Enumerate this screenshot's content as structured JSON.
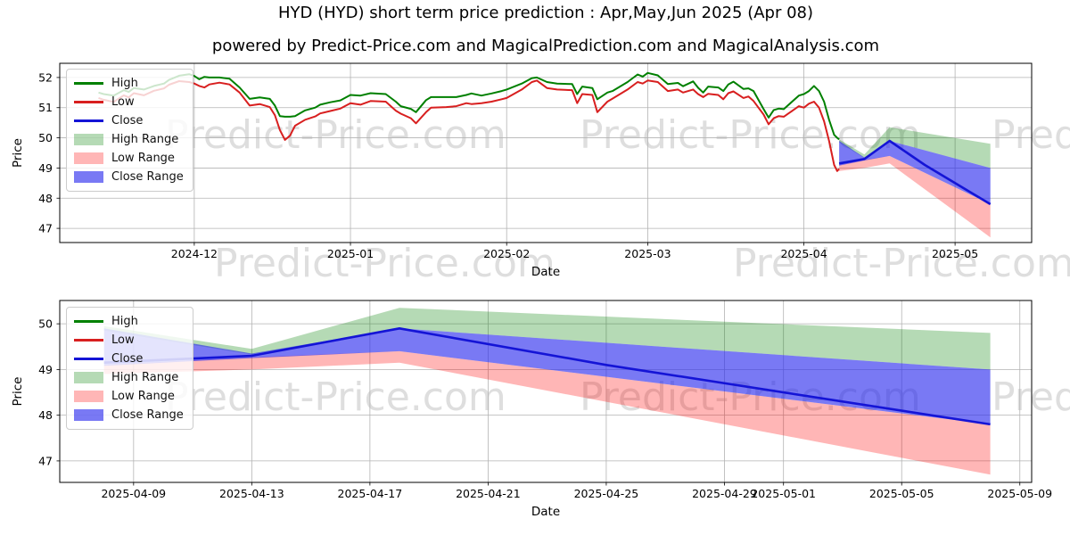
{
  "title": "HYD (HYD) short term price prediction : Apr,May,Jun 2025 (Apr 08)",
  "subtitle": "powered by Predict-Price.com and MagicalPrediction.com and MagicalAnalysis.com",
  "watermark": {
    "text": "Predict-Price.com",
    "color": "#dedede"
  },
  "colors": {
    "high_line": "#008000",
    "low_line": "#d81f1f",
    "close_line": "#1414d6",
    "high_range_fill": "rgba(0,128,0,0.29)",
    "low_range_fill": "rgba(255,0,0,0.285)",
    "close_range_fill": "rgba(38,38,238,0.62)",
    "grid": "#b3b3b3",
    "frame": "#000000",
    "text": "#000000"
  },
  "legend": {
    "items": [
      {
        "label": "High",
        "type": "line",
        "color_key": "high_line"
      },
      {
        "label": "Low",
        "type": "line",
        "color_key": "low_line"
      },
      {
        "label": "Close",
        "type": "line",
        "color_key": "close_line"
      },
      {
        "label": "High Range",
        "type": "patch",
        "color_key": "high_range_fill"
      },
      {
        "label": "Low Range",
        "type": "patch",
        "color_key": "low_range_fill"
      },
      {
        "label": "Close Range",
        "type": "patch",
        "color_key": "close_range_fill"
      }
    ]
  },
  "chart_data": [
    {
      "type": "line",
      "name": "full-history-with-prediction",
      "xlabel": "Date",
      "ylabel": "Price",
      "x_tick_labels": [
        "2024-12",
        "2025-01",
        "2025-02",
        "2025-03",
        "2025-04",
        "2025-05"
      ],
      "x_tick_days": [
        0,
        31,
        62,
        90,
        121,
        151
      ],
      "x_domain_days": [
        -26.7,
        166.2
      ],
      "y_ticks": [
        47,
        48,
        49,
        50,
        51,
        52
      ],
      "ylim": [
        46.53,
        52.47
      ],
      "grid": true,
      "legend_position": "upper-left",
      "history": {
        "start_date": "2024-11-12",
        "days_since_2024_12_01": [
          -19,
          -18,
          -16,
          -14,
          -13,
          -12,
          -10,
          -8,
          -6,
          -5,
          -3,
          -1,
          0,
          1,
          2,
          3,
          5,
          7,
          9,
          11,
          13,
          15,
          16,
          17,
          18,
          19,
          20,
          22,
          24,
          25,
          27,
          29,
          31,
          33,
          35,
          38,
          40,
          41,
          43,
          44,
          46,
          47,
          50,
          52,
          54,
          55,
          57,
          59,
          61,
          62,
          65,
          67,
          68,
          70,
          72,
          75,
          76,
          77,
          79,
          80,
          82,
          83,
          86,
          88,
          89,
          90,
          92,
          94,
          96,
          97,
          99,
          100,
          101,
          102,
          104,
          105,
          106,
          107,
          109,
          110,
          111,
          113,
          114,
          115,
          116,
          117,
          120,
          121,
          122,
          123,
          124,
          125,
          126,
          127,
          127.6,
          128
        ],
        "high": [
          51.5,
          51.45,
          51.4,
          51.58,
          51.52,
          51.65,
          51.6,
          51.72,
          51.8,
          51.92,
          52.06,
          52.11,
          52.05,
          51.94,
          52.02,
          52.0,
          52.0,
          51.96,
          51.67,
          51.29,
          51.34,
          51.29,
          51.07,
          50.72,
          50.7,
          50.7,
          50.72,
          50.91,
          51.0,
          51.1,
          51.18,
          51.24,
          51.42,
          51.4,
          51.48,
          51.45,
          51.2,
          51.05,
          50.96,
          50.85,
          51.25,
          51.35,
          51.35,
          51.35,
          51.42,
          51.47,
          51.4,
          51.47,
          51.55,
          51.6,
          51.8,
          51.98,
          52.0,
          51.85,
          51.8,
          51.78,
          51.45,
          51.7,
          51.65,
          51.28,
          51.5,
          51.55,
          51.85,
          52.1,
          52.03,
          52.15,
          52.07,
          51.78,
          51.82,
          51.71,
          51.87,
          51.66,
          51.5,
          51.7,
          51.67,
          51.55,
          51.77,
          51.86,
          51.62,
          51.64,
          51.55,
          50.95,
          50.67,
          50.92,
          50.97,
          50.95,
          51.4,
          51.45,
          51.55,
          51.72,
          51.55,
          51.2,
          50.6,
          50.1,
          50.0,
          49.95
        ],
        "low": [
          51.32,
          51.26,
          51.19,
          51.41,
          51.34,
          51.48,
          51.41,
          51.56,
          51.64,
          51.76,
          51.88,
          51.85,
          51.8,
          51.72,
          51.67,
          51.77,
          51.83,
          51.77,
          51.5,
          51.07,
          51.12,
          51.02,
          50.75,
          50.26,
          49.93,
          50.07,
          50.4,
          50.6,
          50.71,
          50.81,
          50.89,
          50.97,
          51.15,
          51.1,
          51.22,
          51.2,
          50.9,
          50.8,
          50.65,
          50.48,
          50.85,
          51.0,
          51.02,
          51.05,
          51.15,
          51.12,
          51.15,
          51.2,
          51.28,
          51.32,
          51.6,
          51.85,
          51.9,
          51.65,
          51.6,
          51.58,
          51.15,
          51.45,
          51.42,
          50.85,
          51.2,
          51.3,
          51.6,
          51.85,
          51.8,
          51.9,
          51.85,
          51.55,
          51.6,
          51.5,
          51.6,
          51.45,
          51.35,
          51.46,
          51.42,
          51.28,
          51.48,
          51.54,
          51.32,
          51.37,
          51.22,
          50.77,
          50.45,
          50.65,
          50.72,
          50.7,
          51.05,
          51.0,
          51.13,
          51.2,
          51.0,
          50.55,
          49.9,
          49.1,
          48.9,
          48.97
        ]
      },
      "prediction": {
        "dates": [
          "2025-04-08",
          "2025-04-13",
          "2025-04-18",
          "2025-04-25",
          "2025-05-08"
        ],
        "close_days": [
          128,
          133,
          138,
          145,
          158
        ],
        "close": [
          49.15,
          49.3,
          49.9,
          49.1,
          47.8
        ],
        "band_days": [
          128,
          133,
          138,
          158
        ],
        "high_range_top": [
          49.95,
          49.45,
          50.35,
          49.8
        ],
        "high_range_bottom": [
          49.85,
          49.33,
          49.9,
          49.0
        ],
        "close_range_top": [
          49.9,
          49.35,
          49.9,
          49.0
        ],
        "close_range_bottom": [
          49.08,
          49.25,
          49.4,
          47.8
        ],
        "low_range_top": [
          49.1,
          49.27,
          49.4,
          47.8
        ],
        "low_range_bottom": [
          48.9,
          49.0,
          49.15,
          46.7
        ]
      }
    },
    {
      "type": "line",
      "name": "prediction-zoom",
      "xlabel": "Date",
      "ylabel": "Price",
      "x_tick_labels": [
        "2025-04-09",
        "2025-04-13",
        "2025-04-17",
        "2025-04-21",
        "2025-04-25",
        "2025-04-29",
        "2025-05-01",
        "2025-05-05",
        "2025-05-09"
      ],
      "x_tick_days": [
        129,
        133,
        137,
        141,
        145,
        149,
        151,
        155,
        159
      ],
      "x_domain_days": [
        126.5,
        159.4
      ],
      "y_ticks": [
        47,
        48,
        49,
        50
      ],
      "ylim": [
        46.53,
        50.51
      ],
      "grid": true,
      "legend_position": "upper-left",
      "prediction": {
        "dates": [
          "2025-04-08",
          "2025-04-13",
          "2025-04-18",
          "2025-04-25",
          "2025-05-08"
        ],
        "close_days": [
          128,
          133,
          138,
          145,
          158
        ],
        "close": [
          49.15,
          49.3,
          49.9,
          49.1,
          47.8
        ],
        "band_days": [
          128,
          133,
          138,
          158
        ],
        "high_range_top": [
          49.95,
          49.45,
          50.35,
          49.8
        ],
        "high_range_bottom": [
          49.85,
          49.33,
          49.9,
          49.0
        ],
        "close_range_top": [
          49.9,
          49.35,
          49.9,
          49.0
        ],
        "close_range_bottom": [
          49.08,
          49.25,
          49.4,
          47.8
        ],
        "low_range_top": [
          49.1,
          49.27,
          49.4,
          47.8
        ],
        "low_range_bottom": [
          48.9,
          49.0,
          49.15,
          46.7
        ]
      }
    }
  ]
}
